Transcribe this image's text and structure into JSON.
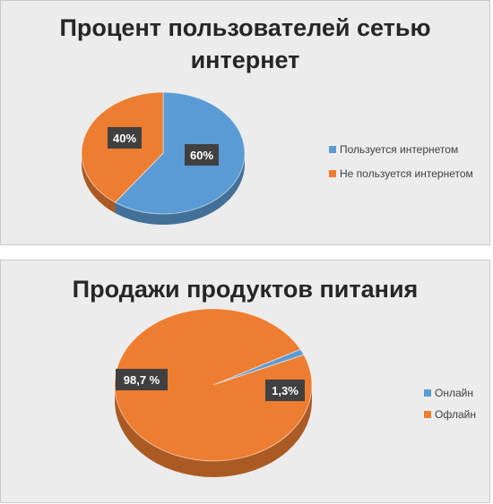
{
  "chart_data": [
    {
      "type": "pie",
      "title": "Процент пользователей сетью интернет",
      "categories": [
        "Пользуется интернетом",
        "Не пользуется интернетом"
      ],
      "values": [
        60,
        40
      ],
      "data_labels": [
        "60%",
        "40%"
      ],
      "colors": [
        "#5b9bd5",
        "#ed7d31"
      ],
      "legend_position": "right",
      "style": "3d"
    },
    {
      "type": "pie",
      "title": "Продажи продуктов питания",
      "categories": [
        "Онлайн",
        "Офлайн"
      ],
      "values": [
        1.3,
        98.7
      ],
      "data_labels": [
        "1,3%",
        "98,7 %"
      ],
      "colors": [
        "#5b9bd5",
        "#ed7d31"
      ],
      "legend_position": "right",
      "style": "3d"
    }
  ]
}
